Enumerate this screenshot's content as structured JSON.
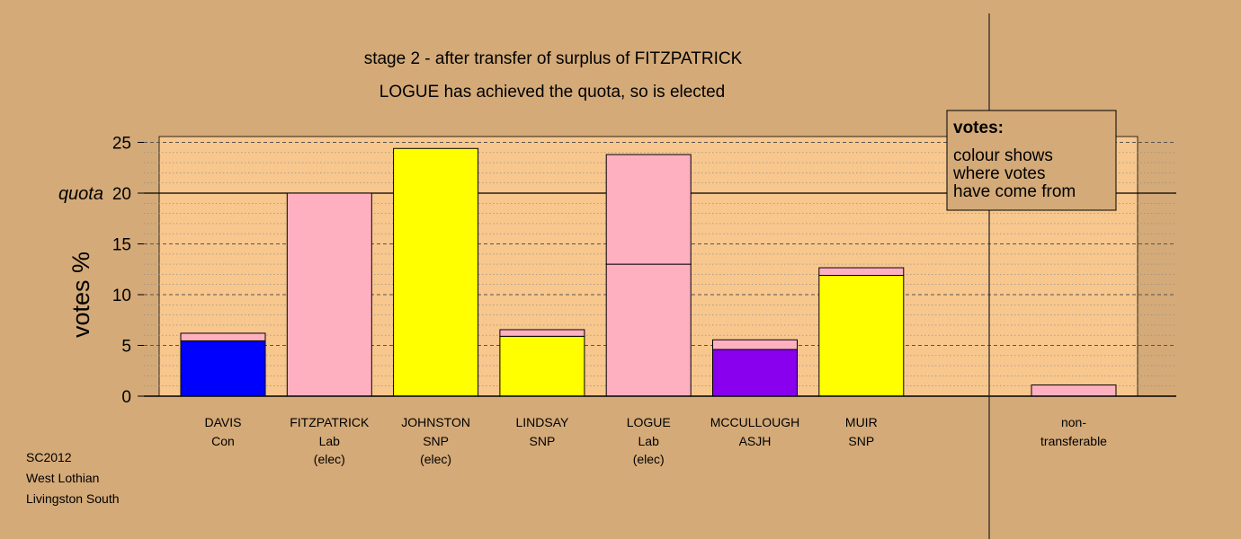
{
  "chart_data": {
    "type": "bar",
    "title": "stage 2 - after transfer of surplus of FITZPATRICK",
    "subtitle": "LOGUE has achieved the quota, so is elected",
    "ylabel": "votes %",
    "ylim": [
      0,
      25.6
    ],
    "yticks": [
      0,
      5,
      10,
      15,
      20,
      25
    ],
    "quota": 20,
    "quota_label": "quota",
    "colors": {
      "Con": "#0000ff",
      "Lab": "#ffb0c0",
      "SNP": "#ffff00",
      "ASJH": "#8800ee",
      "panel": "#f7c78e",
      "background": "#d4aa78"
    },
    "candidates": [
      {
        "name": "DAVIS",
        "party": "Con",
        "note": "",
        "segments": [
          {
            "from": "Con",
            "value": 5.45
          },
          {
            "from": "Lab",
            "value": 0.75
          }
        ]
      },
      {
        "name": "FITZPATRICK",
        "party": "Lab",
        "note": "(elec)",
        "segments": [
          {
            "from": "Lab",
            "value": 20.0
          }
        ]
      },
      {
        "name": "JOHNSTON",
        "party": "SNP",
        "note": "(elec)",
        "segments": [
          {
            "from": "SNP",
            "value": 24.4
          }
        ]
      },
      {
        "name": "LINDSAY",
        "party": "SNP",
        "note": "",
        "segments": [
          {
            "from": "SNP",
            "value": 5.9
          },
          {
            "from": "Lab",
            "value": 0.65
          }
        ]
      },
      {
        "name": "LOGUE",
        "party": "Lab",
        "note": "(elec)",
        "segments": [
          {
            "from": "Lab",
            "value": 13.0
          },
          {
            "from": "Lab",
            "value": 10.8
          }
        ]
      },
      {
        "name": "MCCULLOUGH",
        "party": "ASJH",
        "note": "",
        "segments": [
          {
            "from": "ASJH",
            "value": 4.6
          },
          {
            "from": "Lab",
            "value": 0.95
          }
        ]
      },
      {
        "name": "MUIR",
        "party": "SNP",
        "note": "",
        "segments": [
          {
            "from": "SNP",
            "value": 11.9
          },
          {
            "from": "Lab",
            "value": 0.75
          }
        ]
      }
    ],
    "nontransferable": {
      "label_line1": "non-",
      "label_line2": "transferable",
      "segments": [
        {
          "from": "Lab",
          "value": 1.1
        }
      ]
    },
    "legend": {
      "title": "votes:",
      "lines": [
        "colour shows",
        "where votes",
        "have come from"
      ],
      "placement": "top-right"
    }
  },
  "footer": {
    "line1": "SC2012",
    "line2": "West Lothian",
    "line3": "Livingston South"
  }
}
